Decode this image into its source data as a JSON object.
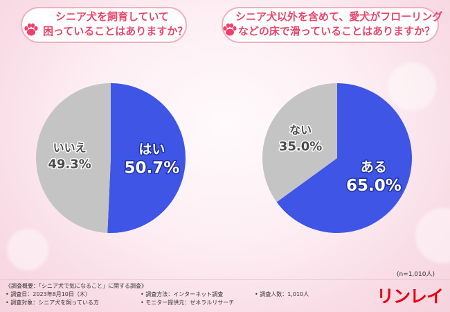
{
  "chart_data": [
    {
      "type": "pie",
      "title_lines": [
        "シニア犬を飼育していて",
        "困っていることはありますか？"
      ],
      "categories": [
        "はい",
        "いいえ"
      ],
      "values": [
        50.7,
        49.3
      ],
      "value_labels": [
        "50.7%",
        "49.3%"
      ],
      "colors": [
        "#3e55e6",
        "#c4c4c4"
      ]
    },
    {
      "type": "pie",
      "title_lines": [
        "シニア犬以外を含めて、愛犬がフローリング",
        "などの床で滑っていることはありますか？"
      ],
      "categories": [
        "ある",
        "ない"
      ],
      "values": [
        65.0,
        35.0
      ],
      "value_labels": [
        "65.0%",
        "35.0%"
      ],
      "colors": [
        "#3e55e6",
        "#c4c4c4"
      ]
    }
  ],
  "sample_note": "(n=1,010人)",
  "survey": {
    "title": "《調査概要：「シニア犬で気になること」に関する調査》",
    "date": "• 調査日：2023年8月10日（木）",
    "method": "• 調査方法：インターネット調査",
    "count": "• 調査人数：1,010人",
    "target": "• 調査対象：シニア犬を飼っている方",
    "provider": "• モニター提供元：ゼネラルリサーチ"
  },
  "brand": {
    "logo_text": "リンレイ",
    "color": "#e60012"
  }
}
